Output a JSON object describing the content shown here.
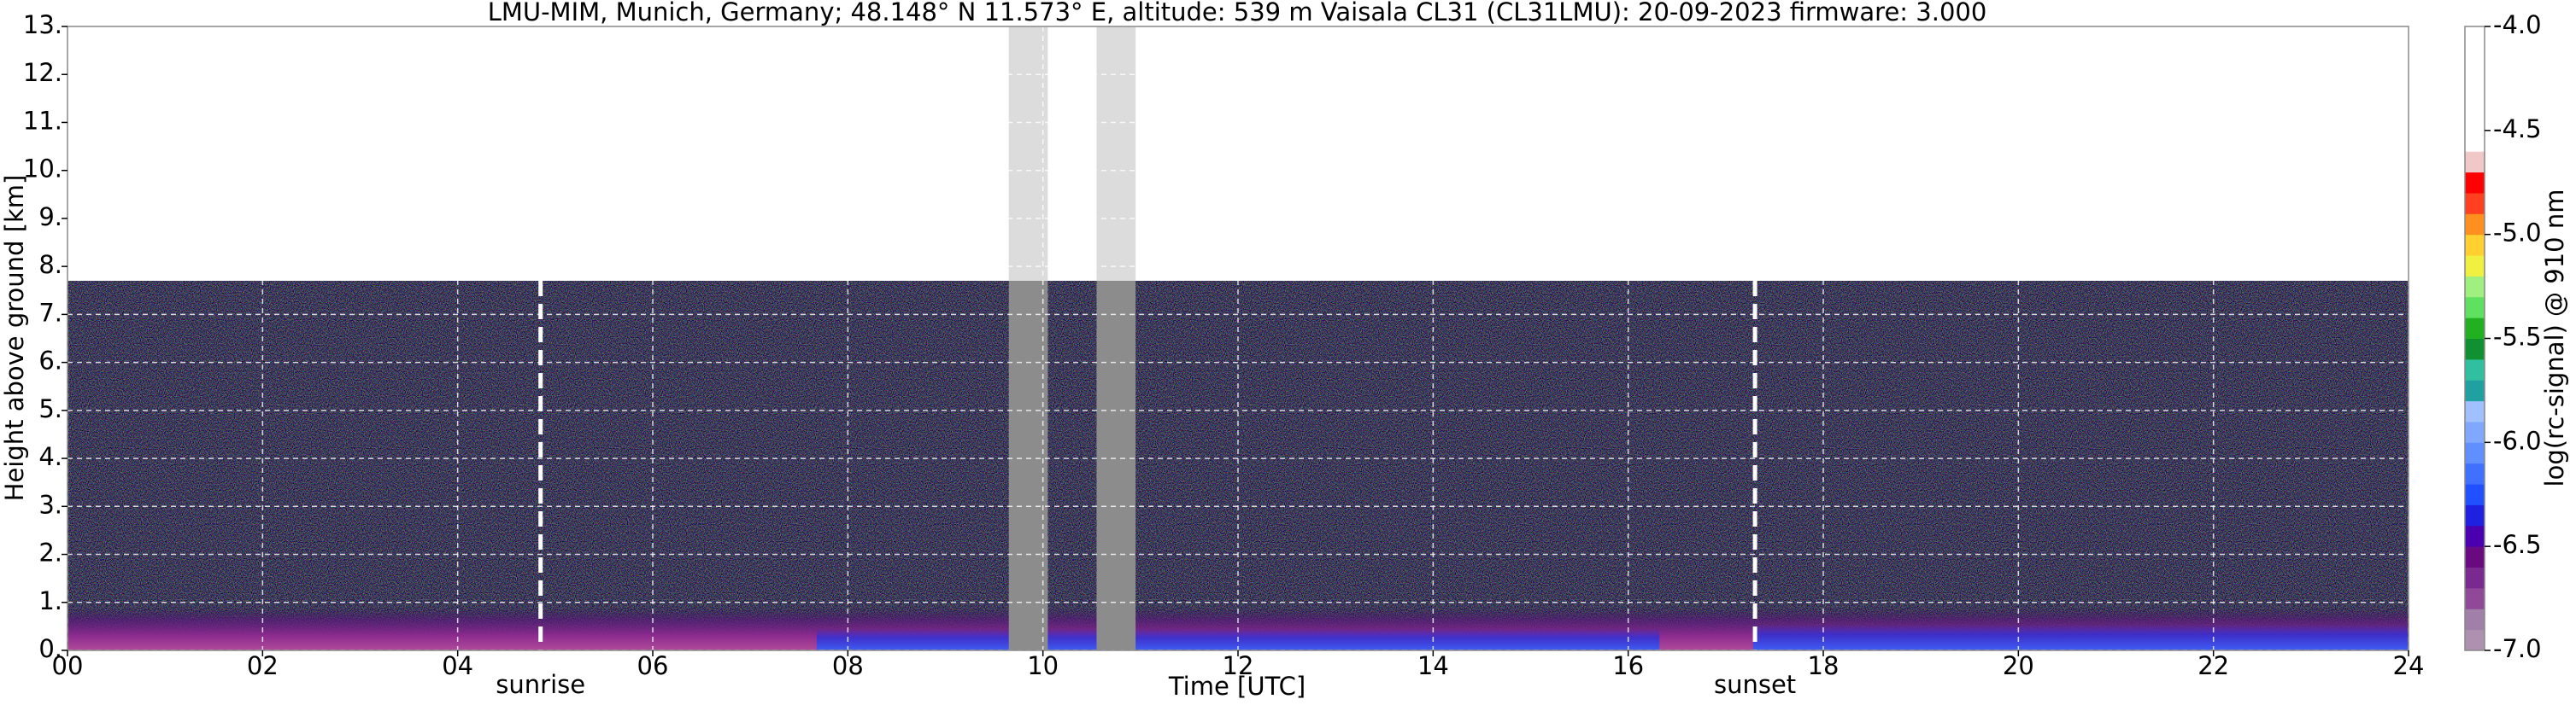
{
  "chart_data": {
    "type": "heatmap",
    "title": "LMU-MIM, Munich, Germany; 48.148° N 11.573° E, altitude: 539 m    Vaisala CL31 (CL31LMU): 20-09-2023    firmware: 3.000",
    "x_label": "Time [UTC]",
    "y_label": "Height above ground [km]",
    "xlim": [
      0,
      24
    ],
    "xticks": [
      {
        "value": 0,
        "label": "00"
      },
      {
        "value": 2,
        "label": "02"
      },
      {
        "value": 4,
        "label": "04"
      },
      {
        "value": 6,
        "label": "06"
      },
      {
        "value": 8,
        "label": "08"
      },
      {
        "value": 10,
        "label": "10"
      },
      {
        "value": 12,
        "label": "12"
      },
      {
        "value": 14,
        "label": "14"
      },
      {
        "value": 16,
        "label": "16"
      },
      {
        "value": 18,
        "label": "18"
      },
      {
        "value": 20,
        "label": "20"
      },
      {
        "value": 22,
        "label": "22"
      },
      {
        "value": 24,
        "label": "24"
      }
    ],
    "ylim": [
      0,
      13
    ],
    "yticks": [
      {
        "value": 0,
        "label": "0."
      },
      {
        "value": 1,
        "label": "1."
      },
      {
        "value": 2,
        "label": "2."
      },
      {
        "value": 3,
        "label": "3."
      },
      {
        "value": 4,
        "label": "4."
      },
      {
        "value": 5,
        "label": "5."
      },
      {
        "value": 6,
        "label": "6."
      },
      {
        "value": 7,
        "label": "7."
      },
      {
        "value": 8,
        "label": "8."
      },
      {
        "value": 9,
        "label": "9."
      },
      {
        "value": 10,
        "label": "10."
      },
      {
        "value": 11,
        "label": "11."
      },
      {
        "value": 12,
        "label": "12."
      },
      {
        "value": 13,
        "label": "13."
      }
    ],
    "grid": true,
    "data_top": 7.7,
    "gaps": [
      [
        9.65,
        10.05
      ],
      [
        10.55,
        10.95
      ]
    ],
    "annotations": [
      {
        "text": "sunrise",
        "x": 4.85
      },
      {
        "text": "sunset",
        "x": 17.3
      }
    ],
    "colorbar": {
      "label": "log(rc-signal) @ 910 nm",
      "lim": [
        -7,
        -4
      ],
      "ticks": [
        {
          "value": -4,
          "label": "-4.0"
        },
        {
          "value": -4.5,
          "label": "-4.5"
        },
        {
          "value": -5,
          "label": "-5.0"
        },
        {
          "value": -5.5,
          "label": "-5.5"
        },
        {
          "value": -6,
          "label": "-6.0"
        },
        {
          "value": -6.5,
          "label": "-6.5"
        },
        {
          "value": -7,
          "label": "-7.0"
        }
      ],
      "colors": [
        "#b090b0",
        "#a080a8",
        "#904898",
        "#7a2a8e",
        "#6a0a80",
        "#4a00b0",
        "#2020e0",
        "#2050ff",
        "#4070ff",
        "#6090ff",
        "#80a8ff",
        "#a0c0ff",
        "#20a0a0",
        "#30c0a0",
        "#109030",
        "#20b020",
        "#60e060",
        "#a0f080",
        "#f0f040",
        "#ffd030",
        "#ff9020",
        "#ff4020",
        "#ff0000",
        "#f0c8c8",
        "#ffffff",
        "#ffffff",
        "#ffffff",
        "#ffffff",
        "#ffffff",
        "#ffffff"
      ]
    }
  }
}
